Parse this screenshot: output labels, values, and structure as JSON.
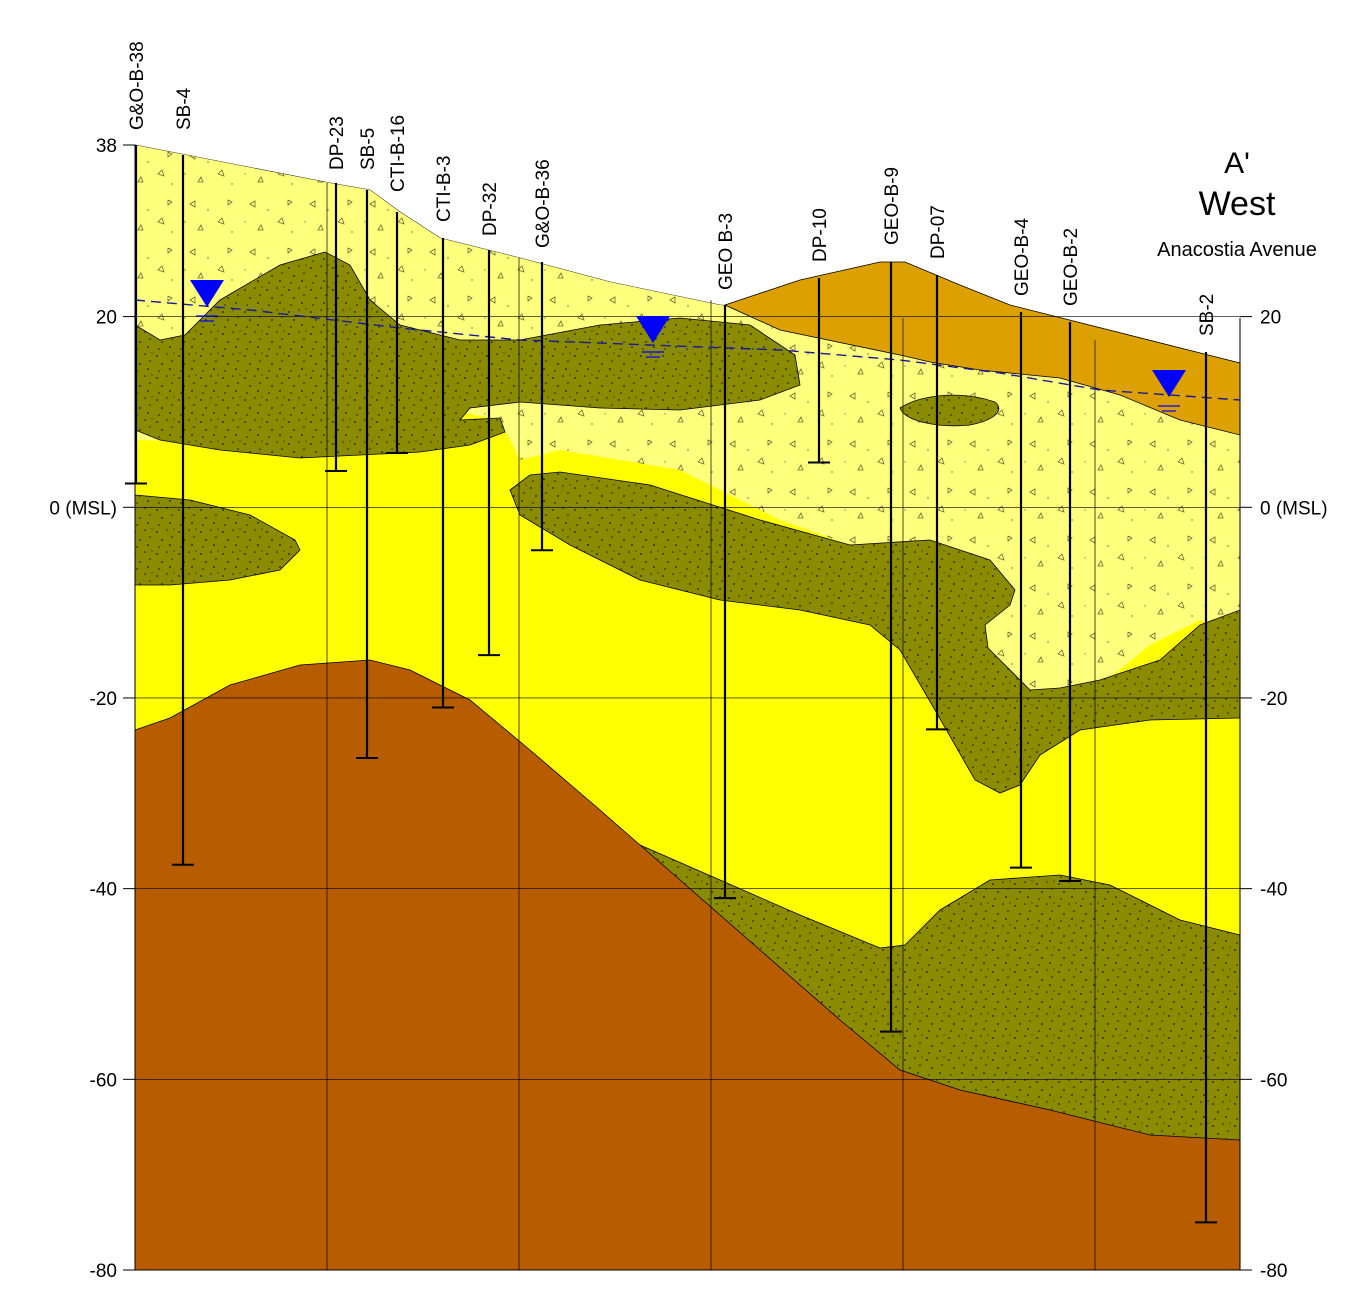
{
  "title": {
    "section_end": "A'",
    "direction": "West",
    "location": "Anacostia Avenue"
  },
  "axis": {
    "unit_note": "",
    "ticks": [
      {
        "value": 38,
        "left": "38",
        "right": ""
      },
      {
        "value": 20,
        "left": "20",
        "right": "20"
      },
      {
        "value": 0,
        "left": "0 (MSL)",
        "right": "0 (MSL)"
      },
      {
        "value": -20,
        "left": "-20",
        "right": "-20"
      },
      {
        "value": -40,
        "left": "-40",
        "right": "-40"
      },
      {
        "value": -60,
        "left": "-60",
        "right": "-60"
      },
      {
        "value": -80,
        "left": "-80",
        "right": "-80"
      }
    ]
  },
  "borings": [
    {
      "label": "G&O-B-38",
      "bottom_elev": 2.5
    },
    {
      "label": "SB-4",
      "bottom_elev": -37.5
    },
    {
      "label": "DP-23",
      "bottom_elev": 3.8
    },
    {
      "label": "SB-5",
      "bottom_elev": -26.3
    },
    {
      "label": "CTI-B-16",
      "bottom_elev": 5.7
    },
    {
      "label": "CTI-B-3",
      "bottom_elev": -21
    },
    {
      "label": "DP-32",
      "bottom_elev": -15.5
    },
    {
      "label": "G&O-B-36",
      "bottom_elev": -4.5
    },
    {
      "label": "GEO B-3",
      "bottom_elev": -41
    },
    {
      "label": "DP-10",
      "bottom_elev": 4.7
    },
    {
      "label": "GEO-B-9",
      "bottom_elev": -55
    },
    {
      "label": "DP-07",
      "bottom_elev": -23.3
    },
    {
      "label": "GEO-B-4",
      "bottom_elev": -37.8
    },
    {
      "label": "GEO-B-2",
      "bottom_elev": -39.2
    },
    {
      "label": "SB-2",
      "bottom_elev": -75
    }
  ],
  "water_table_markers": 3,
  "colors": {
    "fill_yellow": "#ffff00",
    "light_yellow": "#ffff7e",
    "olive": "#8b8b00",
    "orange_brown": "#b85c00",
    "tan_fill": "#dca000",
    "water_blue": "#0000ff",
    "dash_blue": "#1a1a99"
  }
}
